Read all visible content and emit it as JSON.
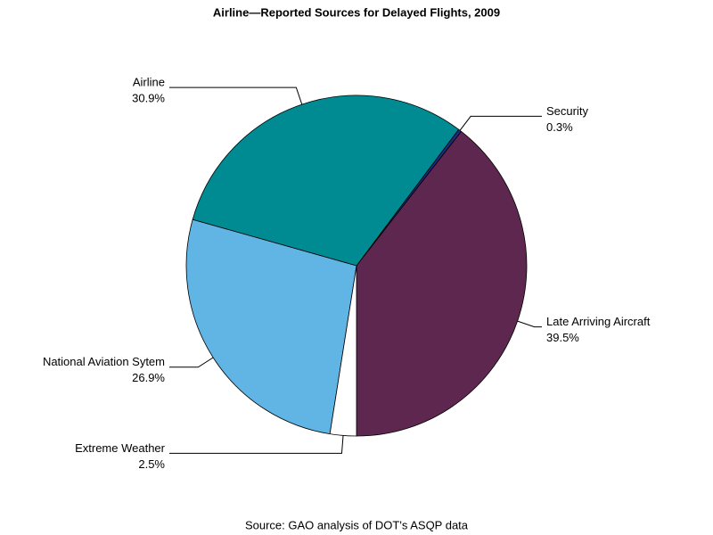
{
  "chart_data": {
    "type": "pie",
    "title": "Airline—Reported Sources for Delayed Flights, 2009",
    "source": "Source: GAO analysis of DOT's ASQP data",
    "categories": [
      "Late Arriving Aircraft",
      "Security",
      "Airline",
      "National Aviation Sytem",
      "Extreme Weather"
    ],
    "values": [
      39.5,
      0.3,
      30.9,
      26.9,
      2.5
    ],
    "value_labels": [
      "39.5%",
      "0.3%",
      "30.9%",
      "26.9%",
      "2.5%"
    ],
    "colors": [
      "#5e2750",
      "#1f2a80",
      "#008b92",
      "#61b5e4",
      "#ffffff"
    ]
  }
}
